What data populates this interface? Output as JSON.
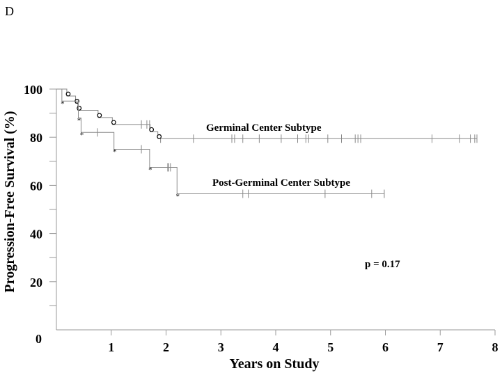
{
  "panel_label": "D",
  "chart_data": {
    "type": "line",
    "subtype": "kaplan-meier",
    "xlabel": "Years on Study",
    "ylabel": "Progression-Free Survival (%)",
    "xlim": [
      0,
      8
    ],
    "ylim": [
      0,
      100
    ],
    "x_ticks": [
      1,
      2,
      3,
      4,
      5,
      6,
      7,
      8
    ],
    "x_tick_labels": [
      "1",
      "2",
      "3",
      "4",
      "5",
      "6",
      "7",
      "8"
    ],
    "y_ticks": [
      20,
      40,
      60,
      80,
      100
    ],
    "y_tick_labels": [
      "20",
      "40",
      "60",
      "80",
      "100"
    ],
    "origin_label": "0",
    "grid": false,
    "annotation": "p = 0.17",
    "series": [
      {
        "name": "Germinal Center Subtype",
        "marker": "circle",
        "color": "#888888",
        "steps": [
          [
            0,
            100
          ],
          [
            0.19,
            97.1
          ],
          [
            0.35,
            94.1
          ],
          [
            0.39,
            91.2
          ],
          [
            0.76,
            88.2
          ],
          [
            1.02,
            85.3
          ],
          [
            1.71,
            82.3
          ],
          [
            1.85,
            79.4
          ],
          [
            7.67,
            79.4
          ]
        ],
        "censors": [
          1.55,
          1.65,
          1.7,
          1.9,
          2.5,
          3.2,
          3.25,
          3.4,
          3.7,
          4.1,
          4.4,
          4.55,
          4.6,
          4.95,
          5.2,
          5.45,
          5.5,
          5.55,
          6.85,
          7.35,
          7.55,
          7.63,
          7.67
        ]
      },
      {
        "name": "Post-Germinal Center Subtype",
        "marker": "asterisk",
        "color": "#888888",
        "steps": [
          [
            0,
            100
          ],
          [
            0.1,
            95
          ],
          [
            0.4,
            88
          ],
          [
            0.45,
            82
          ],
          [
            1.05,
            75
          ],
          [
            1.7,
            67.5
          ],
          [
            2.2,
            56.5
          ],
          [
            5.98,
            56.5
          ]
        ],
        "censors": [
          0.75,
          1.55,
          2.03,
          2.05,
          2.08,
          3.4,
          3.5,
          4.9,
          5.75,
          5.98
        ]
      }
    ]
  }
}
